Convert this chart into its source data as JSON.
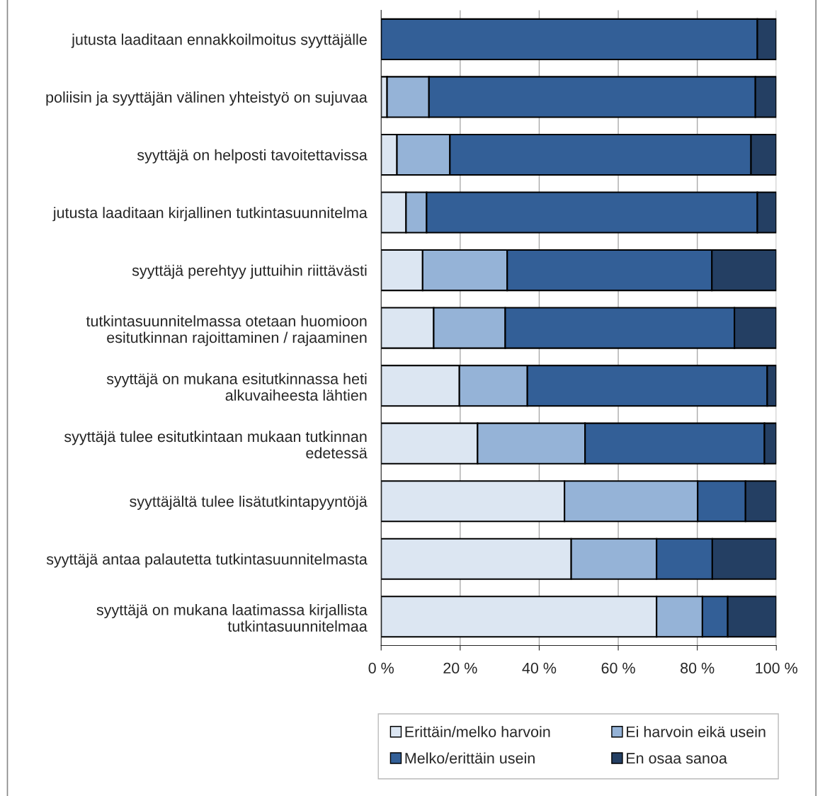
{
  "chart_data": {
    "type": "bar",
    "orientation": "horizontal",
    "stacked": true,
    "categories": [
      "jutusta laaditaan ennakkoilmoitus syyttäjälle",
      "poliisin ja syyttäjän välinen yhteistyö on sujuvaa",
      "syyttäjä on helposti tavoitettavissa",
      "jutusta laaditaan kirjallinen tutkintasuunnitelma",
      "syyttäjä perehtyy juttuihin riittävästi",
      "tutkintasuunnitelmassa otetaan huomioon\nesitutkinnan rajoittaminen / rajaaminen",
      "syyttäjä on mukana esitutkinnassa heti\nalkuvaiheesta lähtien",
      "syyttäjä tulee esitutkintaan mukaan tutkinnan\nedetessä",
      "syyttäjältä tulee lisätutkintapyyntöjä",
      "syyttäjä antaa palautetta tutkintasuunnitelmasta",
      "syyttäjä on mukana laatimassa kirjallista\ntutkintasuunnitelmaa"
    ],
    "series": [
      {
        "name": "Erittäin/melko harvoin",
        "color": "#dce6f2",
        "values": [
          0,
          1.5,
          4.0,
          6.3,
          10.5,
          13.3,
          19.8,
          24.4,
          46.4,
          48.1,
          69.7
        ]
      },
      {
        "name": "Ei harvoin eikä usein",
        "color": "#95b3d7",
        "values": [
          0,
          10.6,
          13.4,
          5.2,
          21.4,
          18.1,
          17.2,
          27.2,
          33.7,
          21.6,
          11.6
        ]
      },
      {
        "name": "Melko/erittäin usein",
        "color": "#335f97",
        "values": [
          95.2,
          82.6,
          76.2,
          83.7,
          51.8,
          58.0,
          60.7,
          45.4,
          12.1,
          14.1,
          6.4
        ]
      },
      {
        "name": "En osaa sanoa",
        "color": "#243f63",
        "values": [
          4.8,
          5.3,
          6.4,
          4.8,
          16.3,
          10.6,
          2.3,
          3.0,
          7.8,
          16.2,
          12.3
        ]
      }
    ],
    "xlim": [
      0,
      100
    ],
    "xticks": [
      {
        "value": 0,
        "label": "0 %"
      },
      {
        "value": 20,
        "label": "20 %"
      },
      {
        "value": 40,
        "label": "40 %"
      },
      {
        "value": 60,
        "label": "60 %"
      },
      {
        "value": 80,
        "label": "80 %"
      },
      {
        "value": 100,
        "label": "100 %"
      }
    ],
    "grid": "x",
    "legend": "bottom"
  }
}
